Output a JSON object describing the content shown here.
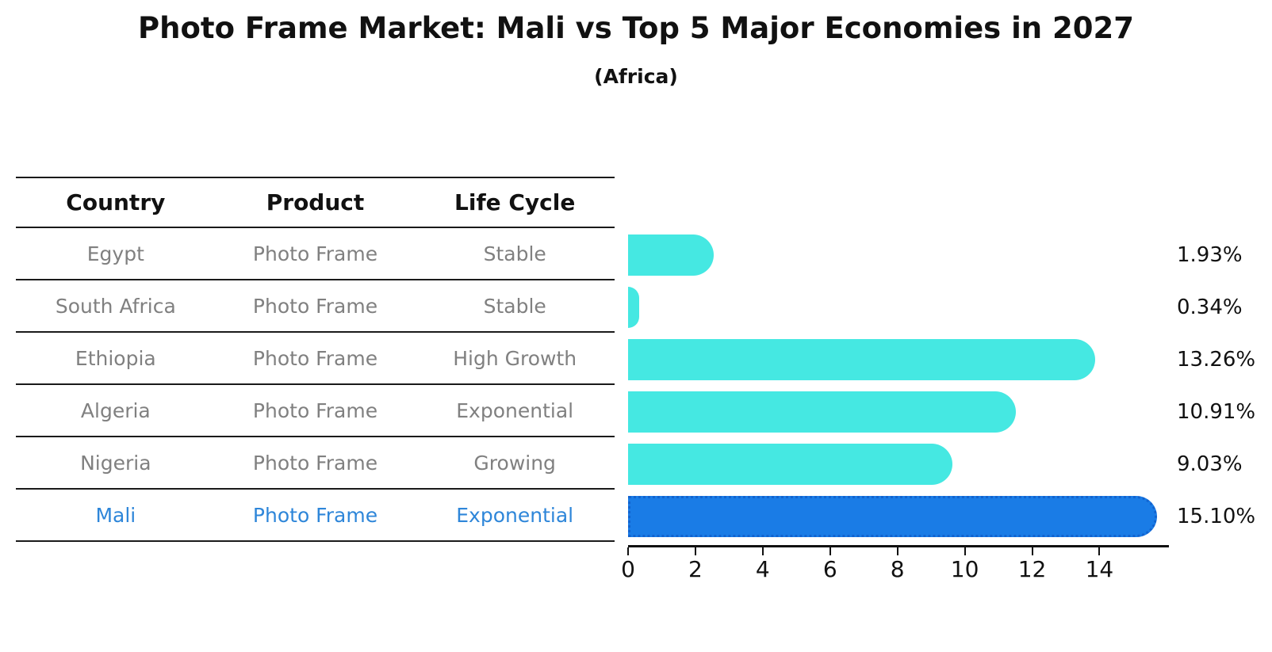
{
  "figure": {
    "title": "Photo Frame Market: Mali vs Top 5 Major Economies in 2027",
    "subtitle": "(Africa)"
  },
  "table": {
    "headers": [
      "Country",
      "Product",
      "Life Cycle"
    ],
    "rows": [
      {
        "country": "Egypt",
        "product": "Photo Frame",
        "life_cycle": "Stable",
        "highlight": false
      },
      {
        "country": "South Africa",
        "product": "Photo Frame",
        "life_cycle": "Stable",
        "highlight": false
      },
      {
        "country": "Ethiopia",
        "product": "Photo Frame",
        "life_cycle": "High Growth",
        "highlight": false
      },
      {
        "country": "Algeria",
        "product": "Photo Frame",
        "life_cycle": "Exponential",
        "highlight": false
      },
      {
        "country": "Nigeria",
        "product": "Photo Frame",
        "life_cycle": "Growing",
        "highlight": false
      },
      {
        "country": "Mali",
        "product": "Photo Frame",
        "life_cycle": "Exponential",
        "highlight": true
      }
    ]
  },
  "chart_data": {
    "type": "bar",
    "orientation": "horizontal",
    "title": "Photo Frame Market: Mali vs Top 5 Major Economies in 2027",
    "subtitle": "(Africa)",
    "categories": [
      "Egypt",
      "South Africa",
      "Ethiopia",
      "Algeria",
      "Nigeria",
      "Mali"
    ],
    "values": [
      1.93,
      0.34,
      13.26,
      10.91,
      9.03,
      15.1
    ],
    "value_labels": [
      "1.93%",
      "0.34%",
      "13.26%",
      "10.91%",
      "9.03%",
      "15.10%"
    ],
    "x_ticks": [
      "0",
      "2",
      "4",
      "6",
      "8",
      "10",
      "12",
      "14"
    ],
    "xlim": [
      0,
      16
    ],
    "grid": false,
    "legend": "none",
    "bar_color": "#45e8e2",
    "highlight_bar_color": "#1a7ce6",
    "highlight_index": 5
  },
  "colors": {
    "background": "#ffffff",
    "table_line": "#1a1a1a",
    "header_text": "#111111",
    "row_text": "#808080",
    "highlight_text": "#2e86d9",
    "axis": "#111111",
    "value_text": "#111111"
  }
}
